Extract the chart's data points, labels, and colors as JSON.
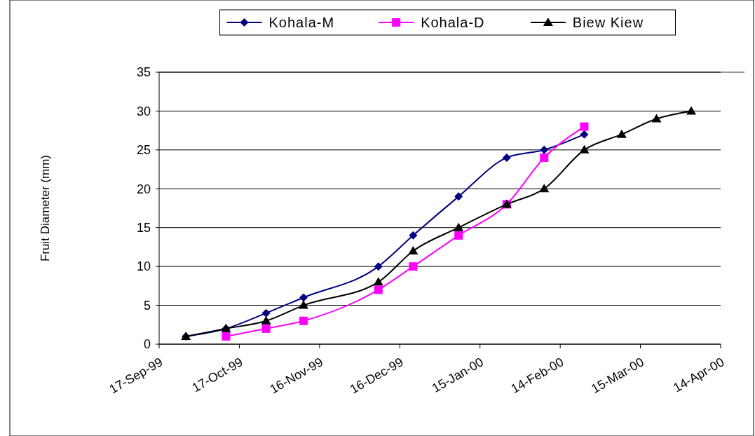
{
  "chart_data": {
    "type": "line",
    "ylabel": "Fruit Diameter (mm)",
    "xlim": [
      "1999-09-17",
      "2000-04-14"
    ],
    "xticks": [
      {
        "value": "1999-09-17",
        "label": "17-Sep-99"
      },
      {
        "value": "1999-10-17",
        "label": "17-Oct-99"
      },
      {
        "value": "1999-11-16",
        "label": "16-Nov-99"
      },
      {
        "value": "1999-12-16",
        "label": "16-Dec-99"
      },
      {
        "value": "2000-01-15",
        "label": "15-Jan-00"
      },
      {
        "value": "2000-02-14",
        "label": "14-Feb-00"
      },
      {
        "value": "2000-03-15",
        "label": "15-Mar-00"
      },
      {
        "value": "2000-04-14",
        "label": "14-Apr-00"
      }
    ],
    "ylim": [
      0,
      35
    ],
    "yticks": [
      0,
      5,
      10,
      15,
      20,
      25,
      30,
      35
    ],
    "grid": "y",
    "legend": "top",
    "series": [
      {
        "name": "Kohala-M",
        "color": "#000080",
        "marker": "diamond",
        "x": [
          "1999-09-27",
          "1999-10-12",
          "1999-10-27",
          "1999-11-10",
          "1999-12-08",
          "1999-12-21",
          "2000-01-07",
          "2000-01-25",
          "2000-02-08",
          "2000-02-23"
        ],
        "values": [
          1,
          2,
          4,
          6,
          10,
          14,
          19,
          24,
          25,
          27
        ]
      },
      {
        "name": "Kohala-D",
        "color": "#ff00ff",
        "marker": "square",
        "x": [
          "1999-10-12",
          "1999-10-27",
          "1999-11-10",
          "1999-12-08",
          "1999-12-21",
          "2000-01-07",
          "2000-01-25",
          "2000-02-08",
          "2000-02-23"
        ],
        "values": [
          1,
          2,
          3,
          7,
          10,
          14,
          18,
          24,
          28
        ]
      },
      {
        "name": "Biew Kiew",
        "color": "#000000",
        "marker": "triangle",
        "x": [
          "1999-09-27",
          "1999-10-12",
          "1999-10-27",
          "1999-11-10",
          "1999-12-08",
          "1999-12-21",
          "2000-01-07",
          "2000-01-25",
          "2000-02-08",
          "2000-02-23",
          "2000-03-08",
          "2000-03-21",
          "2000-04-03"
        ],
        "values": [
          1,
          2,
          3,
          5,
          8,
          12,
          15,
          18,
          20,
          25,
          27,
          29,
          30
        ]
      }
    ]
  }
}
